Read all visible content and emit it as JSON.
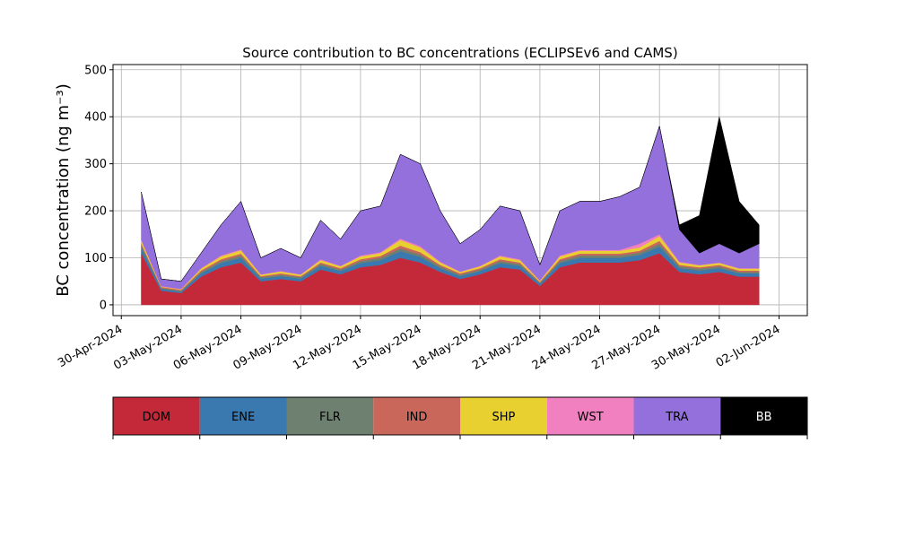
{
  "chart_data": {
    "type": "stacked_area",
    "title": "Source contribution to BC concentrations (ECLIPSEv6 and CAMS)",
    "y_label": "BC concentration (ng m⁻³)",
    "x": [
      "2024-05-01",
      "2024-05-02",
      "2024-05-03",
      "2024-05-04",
      "2024-05-05",
      "2024-05-06",
      "2024-05-07",
      "2024-05-08",
      "2024-05-09",
      "2024-05-10",
      "2024-05-11",
      "2024-05-12",
      "2024-05-13",
      "2024-05-14",
      "2024-05-15",
      "2024-05-16",
      "2024-05-17",
      "2024-05-18",
      "2024-05-19",
      "2024-05-20",
      "2024-05-21",
      "2024-05-22",
      "2024-05-23",
      "2024-05-24",
      "2024-05-25",
      "2024-05-26",
      "2024-05-27",
      "2024-05-28",
      "2024-05-29",
      "2024-05-30",
      "2024-05-31",
      "2024-06-01"
    ],
    "series": [
      {
        "name": "DOM",
        "color": "#c4293a",
        "values": [
          110,
          30,
          25,
          60,
          80,
          90,
          50,
          55,
          50,
          75,
          65,
          80,
          85,
          100,
          90,
          70,
          55,
          65,
          80,
          75,
          40,
          80,
          90,
          90,
          90,
          95,
          110,
          70,
          65,
          70,
          60,
          60
        ]
      },
      {
        "name": "ENE",
        "color": "#3a78b0",
        "values": [
          12,
          4,
          3,
          7,
          9,
          10,
          6,
          6,
          6,
          8,
          7,
          9,
          10,
          14,
          12,
          8,
          6,
          7,
          9,
          8,
          5,
          9,
          10,
          10,
          10,
          11,
          14,
          8,
          8,
          8,
          7,
          7
        ]
      },
      {
        "name": "FLR",
        "color": "#6e8070",
        "values": [
          5,
          2,
          2,
          3,
          4,
          5,
          3,
          3,
          3,
          4,
          3,
          4,
          5,
          6,
          5,
          4,
          3,
          3,
          4,
          4,
          2,
          4,
          5,
          5,
          5,
          5,
          6,
          4,
          4,
          4,
          3,
          3
        ]
      },
      {
        "name": "IND",
        "color": "#c9675a",
        "values": [
          4,
          2,
          2,
          3,
          4,
          4,
          2,
          3,
          2,
          3,
          3,
          4,
          4,
          6,
          5,
          3,
          3,
          3,
          4,
          3,
          2,
          4,
          4,
          4,
          4,
          4,
          6,
          3,
          3,
          3,
          3,
          3
        ]
      },
      {
        "name": "SHP",
        "color": "#e8d030",
        "values": [
          6,
          1,
          1,
          4,
          6,
          7,
          3,
          4,
          3,
          5,
          4,
          6,
          6,
          12,
          10,
          5,
          3,
          4,
          6,
          5,
          2,
          6,
          6,
          6,
          6,
          7,
          10,
          5,
          4,
          4,
          4,
          4
        ]
      },
      {
        "name": "WST",
        "color": "#f080c0",
        "values": [
          2,
          1,
          1,
          1,
          2,
          2,
          1,
          1,
          1,
          2,
          1,
          2,
          2,
          3,
          3,
          2,
          1,
          1,
          2,
          2,
          1,
          2,
          2,
          2,
          2,
          8,
          4,
          2,
          1,
          1,
          1,
          1
        ]
      },
      {
        "name": "TRA",
        "color": "#9370db",
        "values": [
          101,
          15,
          16,
          32,
          65,
          102,
          35,
          48,
          35,
          83,
          57,
          95,
          98,
          179,
          175,
          108,
          59,
          77,
          105,
          103,
          33,
          95,
          103,
          103,
          113,
          120,
          230,
          68,
          25,
          40,
          32,
          52
        ]
      },
      {
        "name": "BB",
        "color": "#000000",
        "values": [
          0,
          0,
          0,
          0,
          0,
          0,
          0,
          0,
          0,
          0,
          0,
          0,
          0,
          0,
          0,
          0,
          0,
          0,
          0,
          0,
          0,
          0,
          0,
          0,
          0,
          0,
          0,
          10,
          80,
          270,
          110,
          40
        ]
      }
    ],
    "xlim": [
      "2024-04-29T14:00",
      "2024-06-03T10:00"
    ],
    "xticks": [
      {
        "value": "2024-04-30",
        "label": "30-Apr-2024"
      },
      {
        "value": "2024-05-03",
        "label": "03-May-2024"
      },
      {
        "value": "2024-05-06",
        "label": "06-May-2024"
      },
      {
        "value": "2024-05-09",
        "label": "09-May-2024"
      },
      {
        "value": "2024-05-12",
        "label": "12-May-2024"
      },
      {
        "value": "2024-05-15",
        "label": "15-May-2024"
      },
      {
        "value": "2024-05-18",
        "label": "18-May-2024"
      },
      {
        "value": "2024-05-21",
        "label": "21-May-2024"
      },
      {
        "value": "2024-05-24",
        "label": "24-May-2024"
      },
      {
        "value": "2024-05-27",
        "label": "27-May-2024"
      },
      {
        "value": "2024-05-30",
        "label": "30-May-2024"
      },
      {
        "value": "2024-06-02",
        "label": "02-Jun-2024"
      }
    ],
    "ylim": [
      -23,
      511
    ],
    "yticks": [
      0,
      100,
      200,
      300,
      400,
      500
    ],
    "grid": true
  }
}
